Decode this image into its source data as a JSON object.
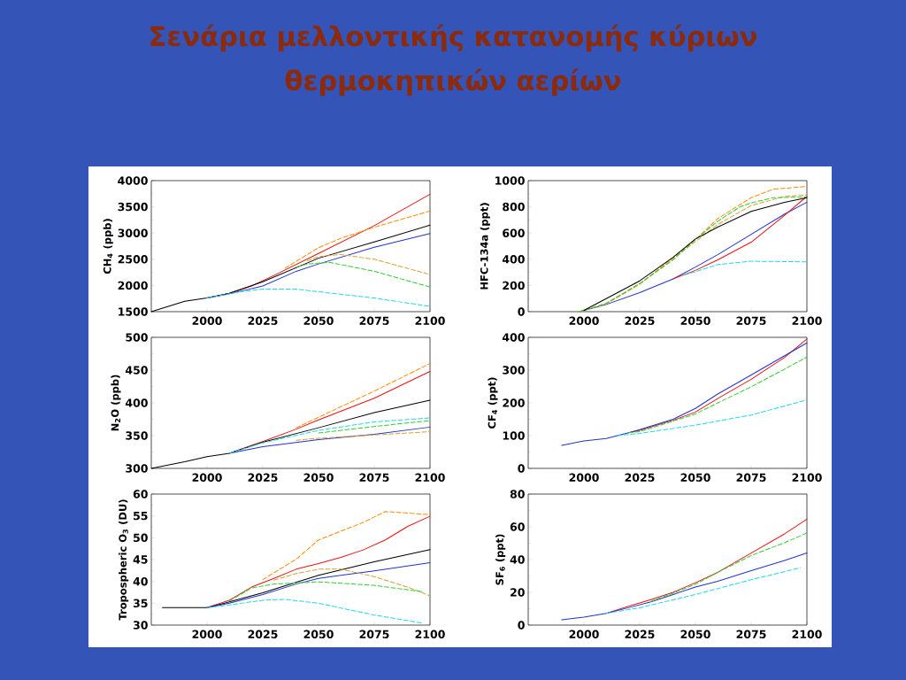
{
  "chart_data": [
    {
      "type": "line",
      "title": "Σενάρια μελλοντικής κατανομής κύριων θερμοκηπικών αερίων",
      "ylabel": "CH$_{4}$ (ppb)",
      "xlim": [
        1975,
        2100
      ],
      "xticks": [
        2000,
        2025,
        2050,
        2075,
        2100
      ],
      "ylim": [
        1500,
        4000
      ],
      "yticks": [
        1500,
        2000,
        2500,
        3000,
        3500,
        4000
      ],
      "series": [
        {
          "color": "#ee1111",
          "line_style": "solid",
          "x": [
            2000,
            2010,
            2020,
            2030,
            2050,
            2075,
            2100
          ],
          "values": [
            1760,
            1850,
            1990,
            2190,
            2610,
            3140,
            3740
          ]
        },
        {
          "color": "#000000",
          "line_style": "solid",
          "x": [
            1975,
            1990,
            2000,
            2010,
            2025,
            2050,
            2075,
            2100
          ],
          "values": [
            1500,
            1700,
            1760,
            1850,
            2070,
            2520,
            2830,
            3150
          ]
        },
        {
          "color": "#2233cc",
          "line_style": "solid",
          "x": [
            2000,
            2010,
            2025,
            2040,
            2050,
            2075,
            2100
          ],
          "values": [
            1760,
            1840,
            1990,
            2270,
            2410,
            2730,
            2990
          ]
        },
        {
          "color": "#ff8c00",
          "line_style": "dashed",
          "x": [
            2035,
            2050,
            2060,
            2075,
            2100
          ],
          "values": [
            2330,
            2720,
            2900,
            3110,
            3420
          ]
        },
        {
          "color": "#d9a030",
          "line_style": "dashed",
          "x": [
            2045,
            2050,
            2060,
            2075,
            2100
          ],
          "values": [
            2470,
            2550,
            2590,
            2500,
            2210
          ]
        },
        {
          "color": "#33cc33",
          "line_style": "dashed",
          "x": [
            2040,
            2045,
            2055,
            2075,
            2100
          ],
          "values": [
            2350,
            2410,
            2440,
            2270,
            1970
          ]
        },
        {
          "color": "#22d8e8",
          "line_style": "dashed",
          "x": [
            2000,
            2015,
            2025,
            2040,
            2050,
            2075,
            2100
          ],
          "values": [
            1760,
            1880,
            1930,
            1930,
            1880,
            1760,
            1600
          ]
        }
      ]
    },
    {
      "type": "line",
      "ylabel": "HFC-134a (ppt)",
      "xlim": [
        1975,
        2100
      ],
      "xticks": [
        2000,
        2025,
        2050,
        2075,
        2100
      ],
      "ylim": [
        0,
        1000
      ],
      "yticks": [
        0,
        200,
        400,
        600,
        800,
        1000
      ],
      "series": [
        {
          "color": "#2233cc",
          "line_style": "solid",
          "x": [
            1998,
            2010,
            2025,
            2040,
            2050,
            2060,
            2075,
            2090,
            2100
          ],
          "values": [
            0,
            55,
            145,
            250,
            340,
            435,
            590,
            745,
            835
          ]
        },
        {
          "color": "#ee1111",
          "line_style": "solid",
          "x": [
            2040,
            2050,
            2060,
            2075,
            2090,
            2100
          ],
          "values": [
            250,
            315,
            395,
            530,
            735,
            880
          ]
        },
        {
          "color": "#ff8c00",
          "line_style": "dashed",
          "x": [
            1998,
            2010,
            2025,
            2050,
            2060,
            2075,
            2085,
            2100
          ],
          "values": [
            0,
            60,
            210,
            550,
            710,
            870,
            935,
            955
          ]
        },
        {
          "color": "#d9a030",
          "line_style": "dashed",
          "x": [
            1998,
            2010,
            2025,
            2050,
            2060,
            2075,
            2090,
            2100
          ],
          "values": [
            0,
            60,
            210,
            535,
            665,
            810,
            880,
            890
          ]
        },
        {
          "color": "#33cc33",
          "line_style": "dashed",
          "x": [
            1998,
            2010,
            2025,
            2040,
            2050,
            2060,
            2070,
            2075,
            2085,
            2100
          ],
          "values": [
            0,
            65,
            215,
            395,
            550,
            690,
            800,
            830,
            870,
            875
          ]
        },
        {
          "color": "#22d8e8",
          "line_style": "dashed",
          "x": [
            2045,
            2050,
            2060,
            2075,
            2100
          ],
          "values": [
            280,
            305,
            360,
            385,
            380
          ]
        },
        {
          "color": "#000000",
          "line_style": "solid",
          "x": [
            2000,
            2010,
            2025,
            2040,
            2050,
            2060,
            2075,
            2090,
            2100
          ],
          "values": [
            10,
            100,
            235,
            415,
            555,
            645,
            765,
            835,
            870
          ]
        }
      ]
    },
    {
      "type": "line",
      "ylabel": "N$_{2}$O (ppb)",
      "xlim": [
        1975,
        2100
      ],
      "xticks": [
        2000,
        2025,
        2050,
        2075,
        2100
      ],
      "ylim": [
        300,
        500
      ],
      "yticks": [
        300,
        350,
        400,
        450,
        500
      ],
      "series": [
        {
          "color": "#ee1111",
          "line_style": "solid",
          "x": [
            2010,
            2020,
            2025,
            2040,
            2050,
            2075,
            2100
          ],
          "values": [
            323,
            335,
            341,
            360,
            374,
            407,
            448
          ]
        },
        {
          "color": "#000000",
          "line_style": "solid",
          "x": [
            1975,
            1990,
            2000,
            2010,
            2025,
            2050,
            2075,
            2100
          ],
          "values": [
            300,
            310,
            318,
            323,
            340,
            362,
            385,
            404
          ]
        },
        {
          "color": "#2233cc",
          "line_style": "solid",
          "x": [
            2010,
            2025,
            2050,
            2075,
            2100
          ],
          "values": [
            323,
            333,
            344,
            352,
            363
          ]
        },
        {
          "color": "#ff8c00",
          "line_style": "dashed",
          "x": [
            2040,
            2050,
            2075,
            2100
          ],
          "values": [
            362,
            378,
            418,
            460
          ]
        },
        {
          "color": "#d9a030",
          "line_style": "dashed",
          "x": [
            2040,
            2050,
            2075,
            2100
          ],
          "values": [
            343,
            346,
            351,
            356
          ]
        },
        {
          "color": "#33cc33",
          "line_style": "dashed",
          "x": [
            2050,
            2075,
            2100
          ],
          "values": [
            354,
            364,
            373
          ]
        },
        {
          "color": "#22d8e8",
          "line_style": "dashed",
          "x": [
            2010,
            2025,
            2050,
            2075,
            2100
          ],
          "values": [
            323,
            339,
            358,
            371,
            377
          ]
        }
      ]
    },
    {
      "type": "line",
      "ylabel": "CF$_{4}$ (ppt)",
      "xlim": [
        1975,
        2100
      ],
      "xticks": [
        2000,
        2025,
        2050,
        2075,
        2100
      ],
      "ylim": [
        0,
        400
      ],
      "yticks": [
        0,
        100,
        200,
        300,
        400
      ],
      "series": [
        {
          "color": "#ee1111",
          "line_style": "solid",
          "x": [
            2020,
            2025,
            2040,
            2050,
            2060,
            2075,
            2090,
            2100
          ],
          "values": [
            109,
            116,
            147,
            172,
            213,
            272,
            339,
            395
          ]
        },
        {
          "color": "#2233cc",
          "line_style": "solid",
          "x": [
            1990,
            2000,
            2010,
            2020,
            2025,
            2040,
            2050,
            2060,
            2075,
            2090,
            2100
          ],
          "values": [
            70,
            84,
            91,
            109,
            118,
            150,
            183,
            227,
            285,
            344,
            383
          ]
        },
        {
          "color": "#33cc33",
          "line_style": "dashed",
          "x": [
            2020,
            2025,
            2050,
            2060,
            2075,
            2090,
            2100
          ],
          "values": [
            109,
            112,
            166,
            200,
            249,
            303,
            340
          ]
        },
        {
          "color": "#22d8e8",
          "line_style": "dashed",
          "x": [
            2015,
            2025,
            2050,
            2075,
            2100
          ],
          "values": [
            100,
            107,
            132,
            163,
            209
          ]
        }
      ]
    },
    {
      "type": "line",
      "ylabel": "Tropospheric O$_{3}$ (DU)",
      "xlim": [
        1975,
        2100
      ],
      "xticks": [
        2000,
        2025,
        2050,
        2075,
        2100
      ],
      "ylim": [
        30,
        60
      ],
      "yticks": [
        30,
        35,
        40,
        45,
        50,
        55,
        60
      ],
      "series": [
        {
          "color": "#ee1111",
          "line_style": "solid",
          "x": [
            2000,
            2010,
            2020,
            2030,
            2040,
            2050,
            2060,
            2070,
            2080,
            2090,
            2100
          ],
          "values": [
            34,
            35.7,
            38.7,
            40.7,
            42.8,
            44.1,
            45.5,
            47.2,
            49.5,
            52.6,
            54.9
          ]
        },
        {
          "color": "#000000",
          "line_style": "solid",
          "x": [
            1980,
            2000,
            2010,
            2025,
            2050,
            2075,
            2100
          ],
          "values": [
            34,
            34,
            35.3,
            37.4,
            41.4,
            44.5,
            47.3
          ]
        },
        {
          "color": "#2233cc",
          "line_style": "solid",
          "x": [
            2000,
            2010,
            2025,
            2040,
            2050,
            2060,
            2075,
            2100
          ],
          "values": [
            34,
            35.0,
            37.0,
            39.4,
            40.7,
            41.4,
            42.4,
            44.3
          ]
        },
        {
          "color": "#ff8c00",
          "line_style": "dashed",
          "x": [
            2025,
            2040,
            2050,
            2060,
            2070,
            2080,
            2100
          ],
          "values": [
            40.4,
            45.1,
            49.5,
            51.5,
            53.5,
            56.0,
            55.3
          ]
        },
        {
          "color": "#d9a030",
          "line_style": "dashed",
          "x": [
            2030,
            2040,
            2050,
            2060,
            2075,
            2090,
            2100
          ],
          "values": [
            40.3,
            41.8,
            42.8,
            42.8,
            41.1,
            38.7,
            36.7
          ]
        },
        {
          "color": "#33cc33",
          "line_style": "dashed",
          "x": [
            2010,
            2020,
            2030,
            2050,
            2075,
            2097
          ],
          "values": [
            35.5,
            38.5,
            39.4,
            39.9,
            39.1,
            37.6
          ]
        },
        {
          "color": "#22d8e8",
          "line_style": "dashed",
          "x": [
            2000,
            2010,
            2025,
            2035,
            2050,
            2075,
            2097
          ],
          "values": [
            34,
            34.6,
            35.7,
            35.9,
            35.0,
            32.3,
            30.4
          ]
        }
      ]
    },
    {
      "type": "line",
      "ylabel": "SF$_{6}$ (ppt)",
      "xlim": [
        1975,
        2100
      ],
      "xticks": [
        2000,
        2025,
        2050,
        2075,
        2100
      ],
      "ylim": [
        0,
        80
      ],
      "yticks": [
        0,
        20,
        40,
        60,
        80
      ],
      "series": [
        {
          "color": "#ee1111",
          "line_style": "solid",
          "x": [
            2010,
            2020,
            2030,
            2040,
            2050,
            2060,
            2075,
            2090,
            2100
          ],
          "values": [
            7.2,
            11.5,
            15.5,
            20.0,
            25.9,
            32.2,
            44.0,
            55.7,
            64.7
          ]
        },
        {
          "color": "#2233cc",
          "line_style": "solid",
          "x": [
            1990,
            2000,
            2010,
            2020,
            2030,
            2040,
            2050,
            2060,
            2075,
            2090,
            2100
          ],
          "values": [
            3.2,
            4.9,
            7.2,
            10.6,
            14.2,
            18.7,
            23.2,
            26.8,
            33.2,
            39.5,
            44.0
          ]
        },
        {
          "color": "#33cc33",
          "line_style": "dashed",
          "x": [
            2030,
            2040,
            2050,
            2060,
            2075,
            2090,
            2100
          ],
          "values": [
            14.5,
            19.5,
            25.0,
            32.2,
            42.5,
            50.3,
            56.2
          ]
        },
        {
          "color": "#22d8e8",
          "line_style": "dashed",
          "x": [
            2010,
            2025,
            2050,
            2075,
            2097
          ],
          "values": [
            7.2,
            10.6,
            18.7,
            27.7,
            35.0
          ]
        }
      ]
    }
  ]
}
